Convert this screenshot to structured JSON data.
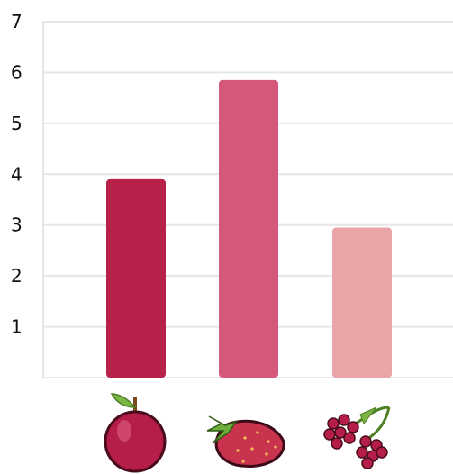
{
  "chart_data": {
    "type": "bar",
    "categories": [
      "apple",
      "strawberry",
      "raspberry"
    ],
    "category_icons": [
      "apple-icon",
      "strawberry-icon",
      "raspberry-icon"
    ],
    "values": [
      3.9,
      5.85,
      2.95
    ],
    "bar_colors": [
      "#b8214a",
      "#d4587a",
      "#eaa5a8"
    ],
    "ylim": [
      0,
      7
    ],
    "yticks": [
      "1",
      "2",
      "3",
      "4",
      "5",
      "6",
      "7"
    ],
    "grid": true,
    "gridline_color": "#e6e6e6",
    "title": "",
    "xlabel": "",
    "ylabel": ""
  }
}
